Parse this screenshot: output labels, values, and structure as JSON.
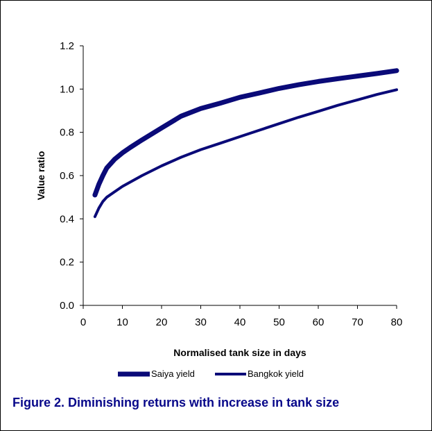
{
  "chart_data": {
    "type": "line",
    "xlabel": "Normalised tank size in days",
    "ylabel": "Value ratio",
    "xlim": [
      0,
      80
    ],
    "ylim": [
      0,
      1.2
    ],
    "x_ticks": [
      "0",
      "10",
      "20",
      "30",
      "40",
      "50",
      "60",
      "70",
      "80"
    ],
    "y_ticks": [
      "0.0",
      "0.2",
      "0.4",
      "0.6",
      "0.8",
      "1.0",
      "1.2"
    ],
    "grid": false,
    "legend_position": "bottom",
    "series": [
      {
        "name": "Saiya yield",
        "color": "#0a0a78",
        "style": "thick",
        "x": [
          3,
          4,
          5,
          6,
          8,
          10,
          12,
          15,
          20,
          25,
          30,
          35,
          40,
          45,
          50,
          55,
          60,
          65,
          70,
          75,
          80
        ],
        "y": [
          0.51,
          0.56,
          0.6,
          0.635,
          0.675,
          0.705,
          0.73,
          0.765,
          0.82,
          0.875,
          0.91,
          0.935,
          0.962,
          0.982,
          1.003,
          1.02,
          1.035,
          1.048,
          1.06,
          1.072,
          1.085
        ]
      },
      {
        "name": "Bangkok yield",
        "color": "#0a0a78",
        "style": "thin",
        "x": [
          3,
          4,
          5,
          6,
          8,
          10,
          12,
          15,
          20,
          25,
          30,
          35,
          40,
          45,
          50,
          55,
          60,
          65,
          70,
          75,
          80
        ],
        "y": [
          0.41,
          0.45,
          0.48,
          0.5,
          0.525,
          0.55,
          0.57,
          0.6,
          0.645,
          0.685,
          0.72,
          0.75,
          0.78,
          0.81,
          0.84,
          0.87,
          0.897,
          0.925,
          0.95,
          0.975,
          0.997
        ]
      }
    ]
  },
  "caption": "Figure 2. Diminishing returns with increase in tank size"
}
